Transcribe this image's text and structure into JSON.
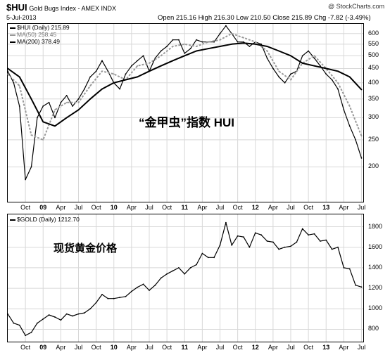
{
  "header": {
    "symbol": "$HUI",
    "name": "Gold Bugs Index - AMEX INDX",
    "date": "5-Jul-2013",
    "quote": "Open 215.16  High 216.30  Low 210.50  Close 215.89  Chg -7.82 (-3.49%)",
    "watermark": "@ StockCharts.com"
  },
  "chart_data": [
    {
      "type": "line",
      "pane": "top",
      "scale": "log",
      "legend": [
        "$HUI (Daily) 215.89",
        "MA(50) 258.45",
        "MA(200) 378.49"
      ],
      "annotation": "“金甲虫”指数  HUI",
      "y_ticks": [
        200,
        250,
        300,
        350,
        400,
        450,
        500,
        550,
        600
      ],
      "ylim": [
        150,
        650
      ],
      "x_ticks": [
        "Oct",
        "09",
        "Apr",
        "Jul",
        "Oct",
        "10",
        "Apr",
        "Jul",
        "Oct",
        "11",
        "Apr",
        "Jul",
        "Oct",
        "12",
        "Apr",
        "Jul",
        "Oct",
        "13",
        "Apr",
        "Jul"
      ],
      "series": [
        {
          "name": "$HUI (Daily) 215.89",
          "color": "#000000",
          "x": [
            "2008-07",
            "2008-08",
            "2008-09",
            "2008-10",
            "2008-11",
            "2008-12",
            "2009-01",
            "2009-02",
            "2009-03",
            "2009-04",
            "2009-05",
            "2009-06",
            "2009-07",
            "2009-08",
            "2009-09",
            "2009-10",
            "2009-11",
            "2009-12",
            "2010-01",
            "2010-02",
            "2010-03",
            "2010-04",
            "2010-05",
            "2010-06",
            "2010-07",
            "2010-08",
            "2010-09",
            "2010-10",
            "2010-11",
            "2010-12",
            "2011-01",
            "2011-02",
            "2011-03",
            "2011-04",
            "2011-05",
            "2011-06",
            "2011-07",
            "2011-08",
            "2011-09",
            "2011-10",
            "2011-11",
            "2011-12",
            "2012-01",
            "2012-02",
            "2012-03",
            "2012-04",
            "2012-05",
            "2012-06",
            "2012-07",
            "2012-08",
            "2012-09",
            "2012-10",
            "2012-11",
            "2012-12",
            "2013-01",
            "2013-02",
            "2013-03",
            "2013-04",
            "2013-05",
            "2013-06",
            "2013-07"
          ],
          "values": [
            440,
            400,
            330,
            180,
            200,
            300,
            330,
            340,
            300,
            340,
            360,
            330,
            350,
            380,
            420,
            440,
            480,
            440,
            400,
            380,
            430,
            460,
            480,
            500,
            440,
            490,
            520,
            540,
            570,
            570,
            510,
            530,
            570,
            560,
            560,
            560,
            600,
            640,
            600,
            560,
            560,
            540,
            560,
            550,
            490,
            450,
            420,
            400,
            430,
            440,
            500,
            520,
            490,
            460,
            430,
            410,
            380,
            320,
            280,
            250,
            215
          ]
        },
        {
          "name": "MA(50) 258.45",
          "color": "#999999",
          "dashed": true,
          "x": [
            "2008-07",
            "2008-09",
            "2008-11",
            "2009-01",
            "2009-03",
            "2009-05",
            "2009-07",
            "2009-09",
            "2009-11",
            "2010-01",
            "2010-03",
            "2010-05",
            "2010-07",
            "2010-09",
            "2010-11",
            "2011-01",
            "2011-03",
            "2011-05",
            "2011-07",
            "2011-09",
            "2011-11",
            "2012-01",
            "2012-03",
            "2012-05",
            "2012-07",
            "2012-09",
            "2012-11",
            "2013-01",
            "2013-03",
            "2013-05",
            "2013-07"
          ],
          "values": [
            430,
            390,
            260,
            250,
            320,
            340,
            340,
            390,
            440,
            430,
            410,
            460,
            470,
            500,
            540,
            550,
            540,
            560,
            570,
            600,
            580,
            560,
            520,
            440,
            410,
            470,
            500,
            450,
            400,
            330,
            258
          ]
        },
        {
          "name": "MA(200) 378.49",
          "color": "#000000",
          "x": [
            "2008-07",
            "2008-09",
            "2008-11",
            "2009-01",
            "2009-03",
            "2009-05",
            "2009-07",
            "2009-09",
            "2009-11",
            "2010-01",
            "2010-03",
            "2010-05",
            "2010-07",
            "2010-09",
            "2010-11",
            "2011-01",
            "2011-03",
            "2011-05",
            "2011-07",
            "2011-09",
            "2011-11",
            "2012-01",
            "2012-03",
            "2012-05",
            "2012-07",
            "2012-09",
            "2012-11",
            "2013-01",
            "2013-03",
            "2013-05",
            "2013-07"
          ],
          "values": [
            450,
            420,
            350,
            290,
            280,
            300,
            320,
            350,
            380,
            400,
            410,
            420,
            440,
            460,
            480,
            500,
            520,
            530,
            540,
            550,
            555,
            550,
            540,
            520,
            500,
            470,
            460,
            450,
            440,
            420,
            378
          ]
        }
      ]
    },
    {
      "type": "line",
      "pane": "bottom",
      "legend": [
        "$GOLD (Daily) 1212.70"
      ],
      "annotation": "现货黄金价格",
      "y_ticks": [
        800,
        1000,
        1200,
        1400,
        1600,
        1800
      ],
      "ylim": [
        680,
        1920
      ],
      "x_ticks": [
        "Oct",
        "09",
        "Apr",
        "Jul",
        "Oct",
        "10",
        "Apr",
        "Jul",
        "Oct",
        "11",
        "Apr",
        "Jul",
        "Oct",
        "12",
        "Apr",
        "Jul",
        "Oct",
        "13",
        "Apr",
        "Jul"
      ],
      "series": [
        {
          "name": "$GOLD (Daily) 1212.70",
          "color": "#000000",
          "x": [
            "2008-07",
            "2008-08",
            "2008-09",
            "2008-10",
            "2008-11",
            "2008-12",
            "2009-01",
            "2009-02",
            "2009-03",
            "2009-04",
            "2009-05",
            "2009-06",
            "2009-07",
            "2009-08",
            "2009-09",
            "2009-10",
            "2009-11",
            "2009-12",
            "2010-01",
            "2010-02",
            "2010-03",
            "2010-04",
            "2010-05",
            "2010-06",
            "2010-07",
            "2010-08",
            "2010-09",
            "2010-10",
            "2010-11",
            "2010-12",
            "2011-01",
            "2011-02",
            "2011-03",
            "2011-04",
            "2011-05",
            "2011-06",
            "2011-07",
            "2011-08",
            "2011-09",
            "2011-10",
            "2011-11",
            "2011-12",
            "2012-01",
            "2012-02",
            "2012-03",
            "2012-04",
            "2012-05",
            "2012-06",
            "2012-07",
            "2012-08",
            "2012-09",
            "2012-10",
            "2012-11",
            "2012-12",
            "2013-01",
            "2013-02",
            "2013-03",
            "2013-04",
            "2013-05",
            "2013-06",
            "2013-07"
          ],
          "values": [
            950,
            860,
            840,
            740,
            770,
            860,
            900,
            940,
            920,
            890,
            950,
            930,
            950,
            960,
            1000,
            1060,
            1140,
            1100,
            1100,
            1110,
            1120,
            1170,
            1210,
            1240,
            1180,
            1230,
            1300,
            1340,
            1370,
            1400,
            1340,
            1400,
            1430,
            1540,
            1500,
            1500,
            1620,
            1840,
            1620,
            1710,
            1700,
            1600,
            1740,
            1720,
            1660,
            1650,
            1580,
            1600,
            1610,
            1650,
            1780,
            1720,
            1730,
            1660,
            1670,
            1580,
            1600,
            1400,
            1390,
            1230,
            1212
          ]
        }
      ]
    }
  ]
}
